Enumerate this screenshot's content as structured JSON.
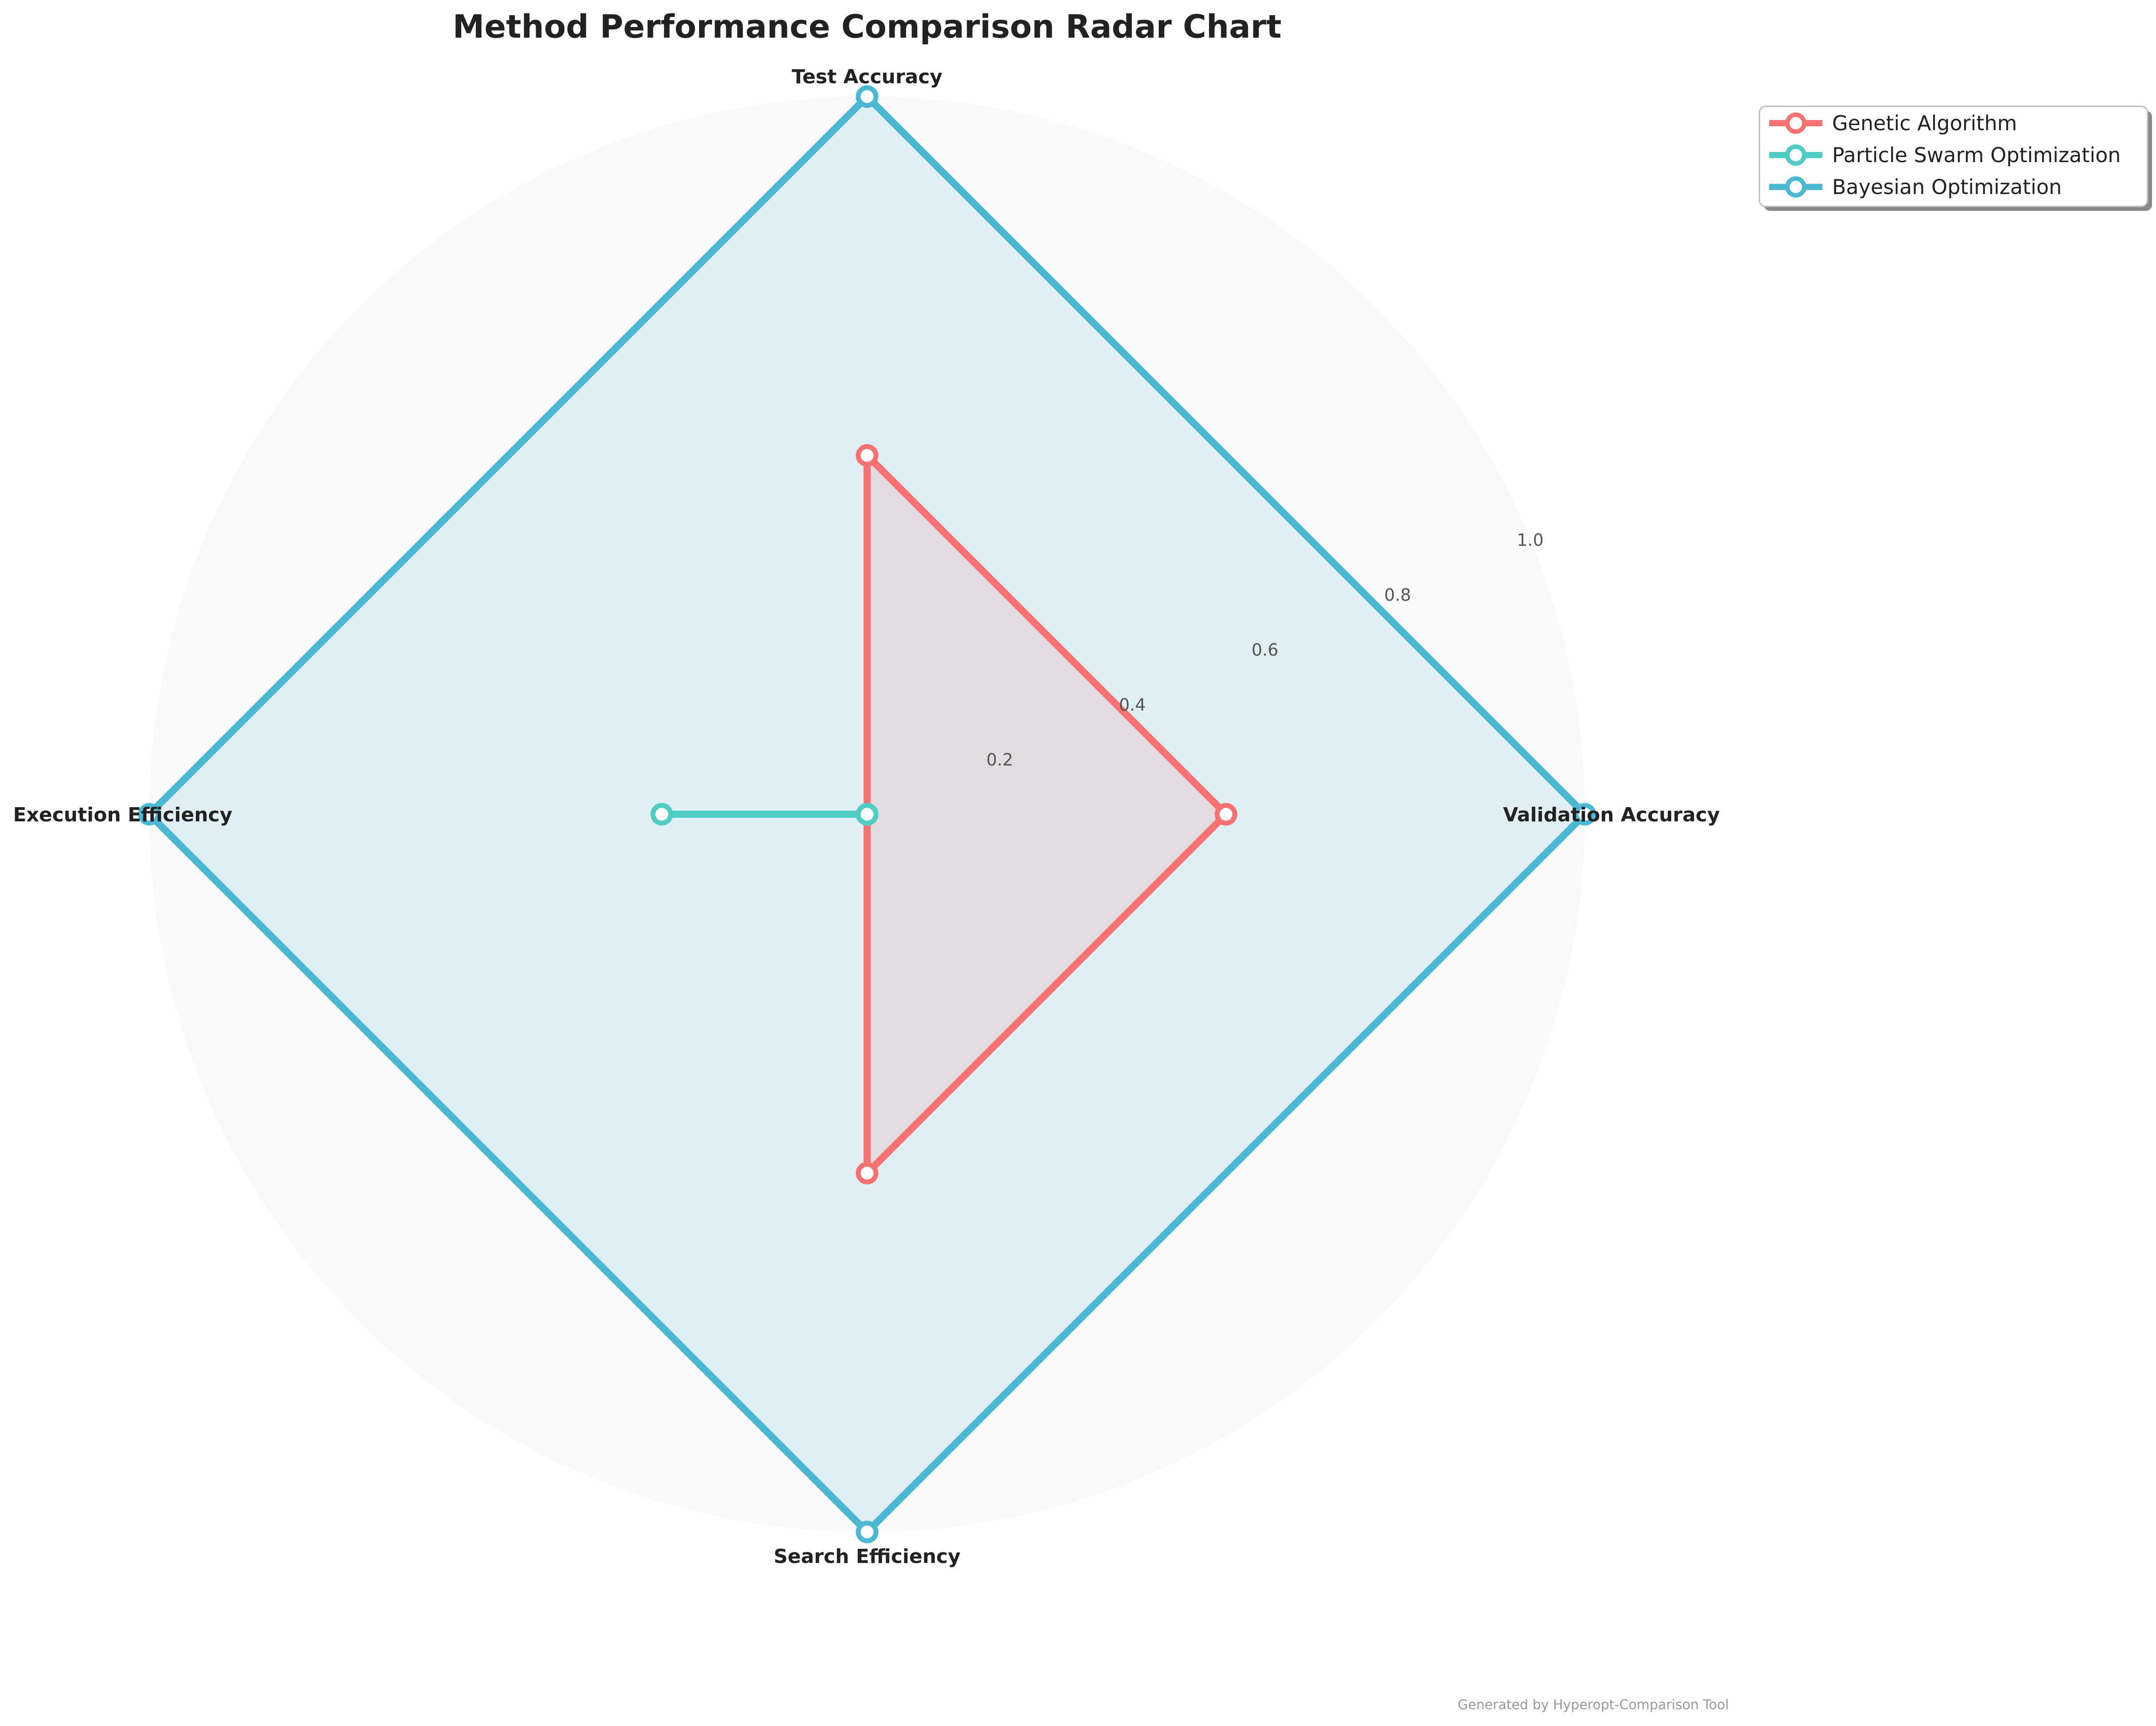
{
  "chart_data": {
    "type": "radar",
    "title": "Method Performance Comparison Radar Chart",
    "axes": [
      "Validation Accuracy",
      "Test Accuracy",
      "Execution Efficiency",
      "Search Efficiency"
    ],
    "radial_ticks": [
      "0.2",
      "0.4",
      "0.6",
      "0.8",
      "1.0"
    ],
    "rlim": [
      0,
      1
    ],
    "grid": false,
    "legend_position": "top-right",
    "series": [
      {
        "name": "Genetic Algorithm",
        "values": [
          0.5,
          0.5,
          0.0,
          0.5
        ],
        "color": "#F87171"
      },
      {
        "name": "Particle Swarm Optimization",
        "values": [
          0.0,
          0.0,
          0.286,
          0.0
        ],
        "color": "#4ECDC4"
      },
      {
        "name": "Bayesian Optimization",
        "values": [
          1.0,
          1.0,
          1.0,
          1.0
        ],
        "color": "#4BB8D4"
      }
    ],
    "footer": "Generated by Hyperopt-Comparison Tool"
  }
}
